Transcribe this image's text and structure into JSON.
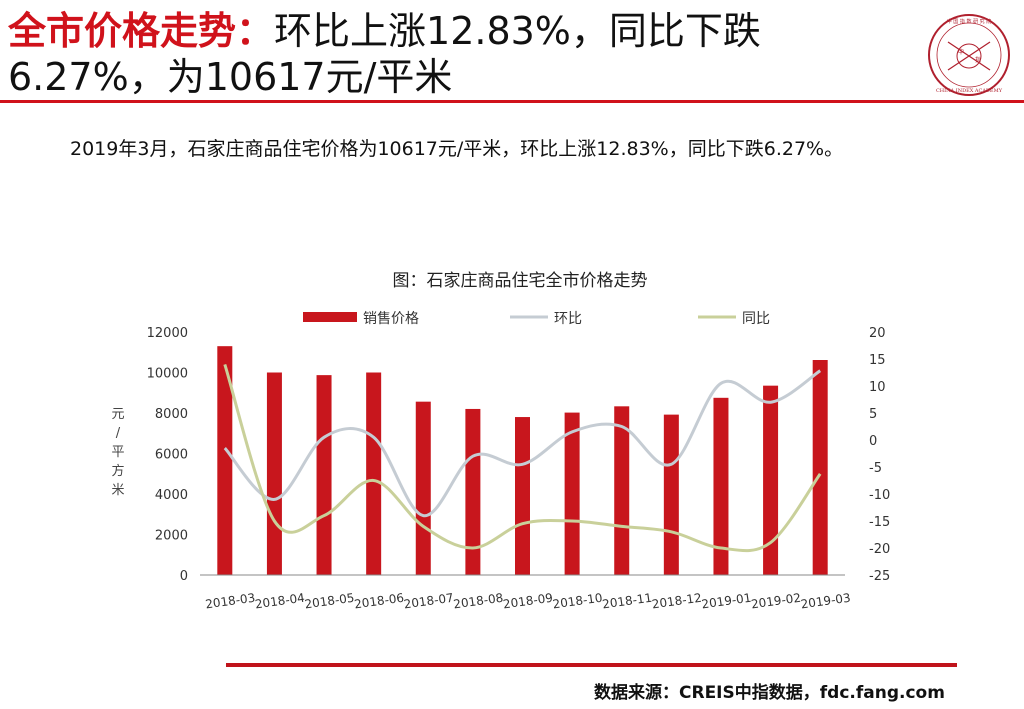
{
  "header": {
    "title_accent": "全市价格走势：",
    "title_rest_line1": "环比上涨12.83%，同比下跌",
    "title_line2": "6.27%，为10617元/平米"
  },
  "logo": {
    "text_top": "中 国 指 数 研 究 院",
    "text_center_1": "中",
    "text_center_2": "指",
    "text_bottom": "CHINA INDEX ACADEMY"
  },
  "summary": "2019年3月，石家庄商品住宅价格为10617元/平米，环比上涨12.83%，同比下跌6.27%。",
  "source": "数据来源：CREIS中指数据，fdc.fang.com",
  "chart_data": {
    "type": "bar",
    "title": "图：石家庄商品住宅全市价格走势",
    "categories": [
      "2018-03",
      "2018-04",
      "2018-05",
      "2018-06",
      "2018-07",
      "2018-08",
      "2018-09",
      "2018-10",
      "2018-11",
      "2018-12",
      "2019-01",
      "2019-02",
      "2019-03"
    ],
    "ylabel_left": "元/平方米",
    "ylabel_right": "%",
    "ylim_left": [
      0,
      12000
    ],
    "yticks_left": [
      "0",
      "2000",
      "4000",
      "6000",
      "8000",
      "10000",
      "12000"
    ],
    "ylim_right": [
      -25,
      20
    ],
    "yticks_right": [
      "-25",
      "-20",
      "-15",
      "-10",
      "-5",
      "0",
      "5",
      "10",
      "15",
      "20"
    ],
    "legend_position": "top",
    "series": [
      {
        "name": "销售价格",
        "type": "bar",
        "axis": "left",
        "color": "#c8161d",
        "values": [
          11300,
          10000,
          9870,
          10000,
          8560,
          8200,
          7800,
          8020,
          8330,
          7920,
          8750,
          9350,
          10617
        ]
      },
      {
        "name": "环比",
        "type": "line",
        "axis": "right",
        "color": "#c5ccd3",
        "values": [
          -1.5,
          -11,
          0.5,
          0.5,
          -14,
          -3,
          -4.5,
          1.5,
          2.5,
          -4.5,
          10.5,
          7,
          12.83
        ]
      },
      {
        "name": "同比",
        "type": "line",
        "axis": "right",
        "color": "#c9d09a",
        "values": [
          14,
          -15,
          -14,
          -7.5,
          -16,
          -20,
          -15.5,
          -15,
          -16,
          -17,
          -20,
          -19,
          -6.27
        ]
      }
    ]
  }
}
